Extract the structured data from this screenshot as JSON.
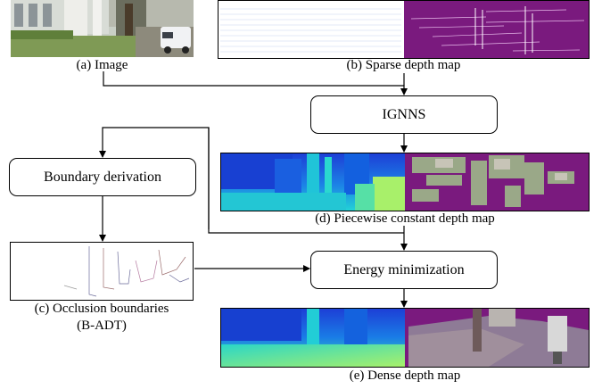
{
  "captions": {
    "image": "(a) Image",
    "sparse": "(b) Sparse depth map",
    "piecewise": "(d) Piecewise constant depth map",
    "occlusion_line1": "(c) Occlusion boundaries",
    "occlusion_line2": "(B-ADT)",
    "dense": "(e) Dense depth map"
  },
  "boxes": {
    "ignns": "IGNNS",
    "boundary": "Boundary derivation",
    "energy": "Energy minimization"
  },
  "colors": {
    "depth_near": "#1d3fd6",
    "depth_far": "#a8f06a",
    "invalid": "#7a1a7e",
    "line": "#000000"
  }
}
